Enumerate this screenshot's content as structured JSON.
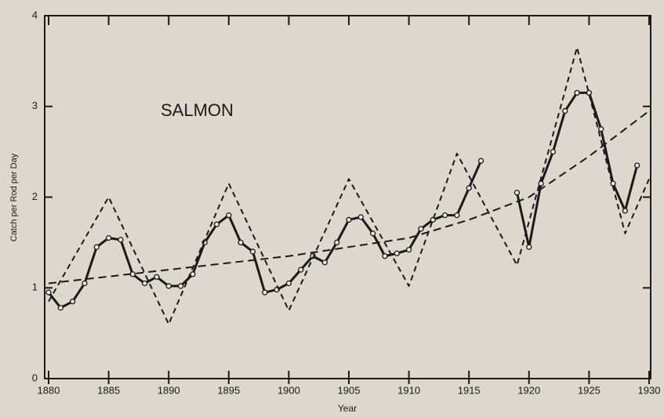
{
  "chart_data": {
    "type": "line",
    "annotation": "SALMON",
    "xlabel": "Year",
    "ylabel": "Catch per Rod per Day",
    "xlim": [
      1880,
      1930
    ],
    "xticks": [
      1880,
      1885,
      1890,
      1895,
      1900,
      1905,
      1910,
      1915,
      1920,
      1925,
      1930
    ],
    "ylim": [
      0,
      4
    ],
    "yticks": [
      0,
      1,
      2,
      3,
      4
    ],
    "series": [
      {
        "style": "solid-markers",
        "color": "#1a1a1a",
        "x": [
          1880,
          1881,
          1882,
          1883,
          1884,
          1885,
          1886,
          1887,
          1888,
          1889,
          1890,
          1891,
          1892,
          1893,
          1894,
          1895,
          1896,
          1897,
          1898,
          1899,
          1900,
          1901,
          1902,
          1903,
          1904,
          1905,
          1906,
          1907,
          1908,
          1909,
          1910,
          1911,
          1912,
          1913,
          1914,
          1915,
          1916,
          1917,
          1918,
          1919,
          1920,
          1921,
          1922,
          1923,
          1924,
          1925,
          1926,
          1927,
          1928,
          1929
        ],
        "values": [
          0.95,
          0.78,
          0.85,
          1.05,
          1.45,
          1.55,
          1.53,
          1.15,
          1.05,
          1.12,
          1.02,
          1.02,
          1.15,
          1.5,
          1.7,
          1.8,
          1.5,
          1.4,
          0.95,
          0.98,
          1.05,
          1.2,
          1.35,
          1.28,
          1.5,
          1.75,
          1.78,
          1.6,
          1.35,
          1.38,
          1.42,
          1.65,
          1.75,
          1.8,
          1.8,
          2.1,
          2.4,
          null,
          null,
          2.05,
          1.45,
          2.15,
          2.5,
          2.95,
          3.15,
          3.15,
          2.75,
          2.15,
          1.85,
          2.35
        ]
      },
      {
        "style": "dashed",
        "color": "#1a1a1a",
        "x": [
          1880,
          1885,
          1890,
          1895,
          1900,
          1905,
          1910,
          1914,
          1919,
          1924,
          1928,
          1930
        ],
        "values": [
          0.85,
          2.0,
          0.6,
          2.15,
          0.75,
          2.2,
          1.02,
          2.48,
          1.25,
          3.65,
          1.6,
          2.2
        ]
      },
      {
        "style": "dashed-trend",
        "color": "#1a1a1a",
        "x": [
          1880,
          1890,
          1900,
          1910,
          1915,
          1920,
          1925,
          1930
        ],
        "values": [
          1.05,
          1.2,
          1.35,
          1.55,
          1.75,
          2.0,
          2.45,
          2.95
        ]
      }
    ]
  }
}
